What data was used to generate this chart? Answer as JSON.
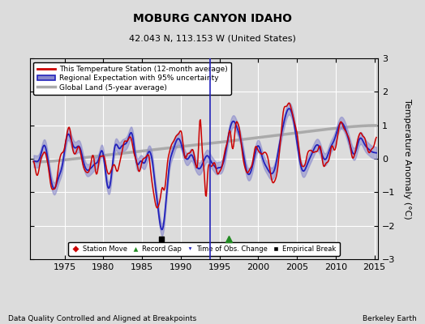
{
  "title": "MOBURG CANYON IDAHO",
  "subtitle": "42.043 N, 113.153 W (United States)",
  "xlabel_bottom": "Data Quality Controlled and Aligned at Breakpoints",
  "xlabel_right": "Berkeley Earth",
  "ylabel": "Temperature Anomaly (°C)",
  "xlim": [
    1970.5,
    2015.5
  ],
  "ylim": [
    -3,
    3
  ],
  "yticks": [
    -3,
    -2,
    -1,
    0,
    1,
    2,
    3
  ],
  "xticks": [
    1975,
    1980,
    1985,
    1990,
    1995,
    2000,
    2005,
    2010,
    2015
  ],
  "bg_color": "#dcdcdc",
  "plot_bg_color": "#dcdcdc",
  "station_line_color": "#cc0000",
  "regional_line_color": "#2222bb",
  "regional_fill_color": "#8888cc",
  "global_line_color": "#aaaaaa",
  "legend_station": "This Temperature Station (12-month average)",
  "legend_regional": "Regional Expectation with 95% uncertainty",
  "legend_global": "Global Land (5-year average)",
  "empirical_break_x": 1987.5,
  "record_gap_x": 1996.2,
  "time_of_obs_x": 1993.8,
  "seed": 17
}
